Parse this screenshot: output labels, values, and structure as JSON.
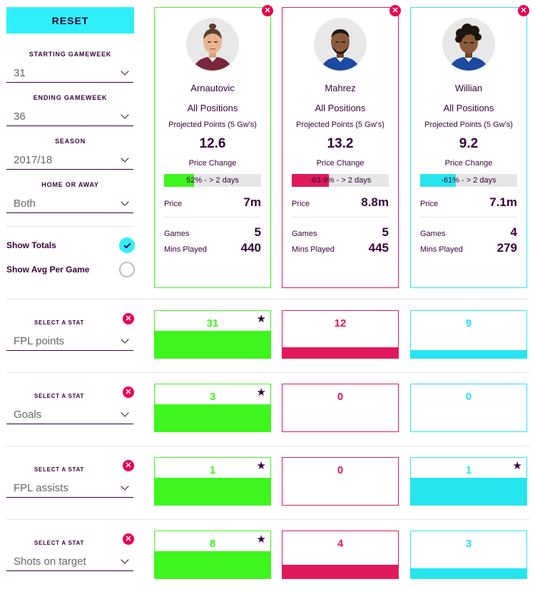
{
  "sidebar": {
    "reset_label": "RESET",
    "filters": [
      {
        "label": "STARTING GAMEWEEK",
        "value": "31"
      },
      {
        "label": "ENDING GAMEWEEK",
        "value": "36"
      },
      {
        "label": "SEASON",
        "value": "2017/18"
      },
      {
        "label": "HOME OR AWAY",
        "value": "Both"
      }
    ],
    "show_totals_label": "Show Totals",
    "show_totals_checked": true,
    "show_avg_label": "Show Avg Per Game",
    "show_avg_checked": false
  },
  "players": [
    {
      "name": "Arnautovic",
      "position": "All Positions",
      "projected_label": "Projected Points (5 Gw's)",
      "projected": "12.6",
      "price_change_label": "Price Change",
      "price_change_text": "52% - > 2 days",
      "price_change_pct": 52,
      "price_label": "Price",
      "price": "7m",
      "games_label": "Games",
      "games": "5",
      "mins_label": "Mins Played",
      "mins": "440",
      "color": "#3ef51d",
      "text_color": "#3ef51d",
      "shirt_color": "#7a263a",
      "hair": "topknot"
    },
    {
      "name": "Mahrez",
      "position": "All Positions",
      "projected_label": "Projected Points (5 Gw's)",
      "projected": "13.2",
      "price_change_label": "Price Change",
      "price_change_text": "-63.9% - > 2 days",
      "price_change_pct": 63.9,
      "price_label": "Price",
      "price": "8.8m",
      "games_label": "Games",
      "games": "5",
      "mins_label": "Mins Played",
      "mins": "445",
      "color": "#e0195a",
      "text_color": "#e0195a",
      "shirt_color": "#1d4aa0",
      "hair": "short"
    },
    {
      "name": "Willian",
      "position": "All Positions",
      "projected_label": "Projected Points (5 Gw's)",
      "projected": "9.2",
      "price_change_label": "Price Change",
      "price_change_text": "-61% - > 2 days",
      "price_change_pct": 61,
      "price_label": "Price",
      "price": "7.1m",
      "games_label": "Games",
      "games": "4",
      "mins_label": "Mins Played",
      "mins": "279",
      "color": "#26e5ee",
      "text_color": "#26e5ee",
      "shirt_color": "#1d4aa0",
      "hair": "curly"
    }
  ],
  "stat_select_label": "SELECT A STAT",
  "stats": [
    {
      "name": "FPL points",
      "values": [
        "31",
        "12",
        "9"
      ],
      "fill_pct": [
        100,
        39,
        29
      ],
      "star": [
        true,
        false,
        false
      ]
    },
    {
      "name": "Goals",
      "values": [
        "3",
        "0",
        "0"
      ],
      "fill_pct": [
        100,
        0,
        0
      ],
      "star": [
        true,
        false,
        false
      ]
    },
    {
      "name": "FPL assists",
      "values": [
        "1",
        "0",
        "1"
      ],
      "fill_pct": [
        100,
        0,
        100
      ],
      "star": [
        true,
        false,
        true
      ]
    },
    {
      "name": "Shots on target",
      "values": [
        "8",
        "4",
        "3"
      ],
      "fill_pct": [
        100,
        50,
        38
      ],
      "star": [
        true,
        false,
        false
      ]
    }
  ]
}
